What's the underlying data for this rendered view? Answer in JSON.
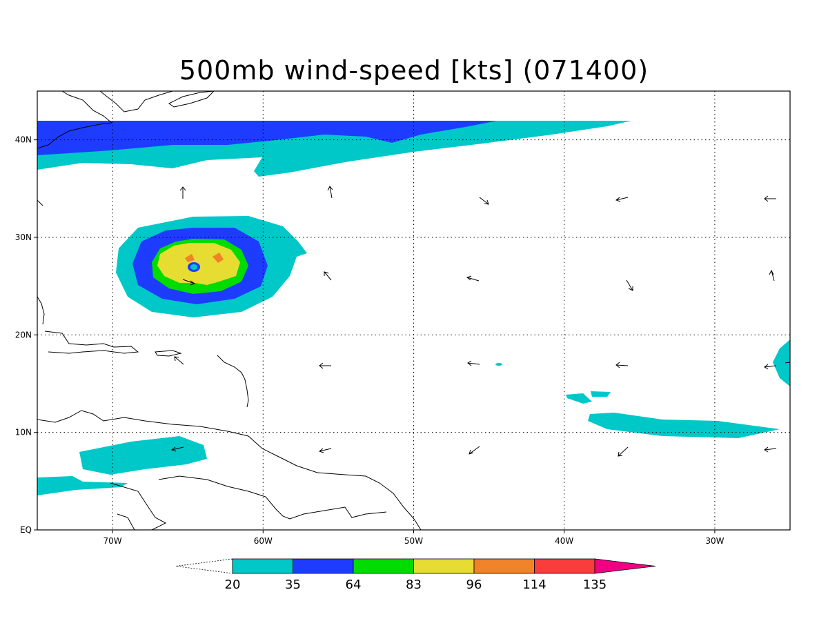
{
  "title": "500mb wind-speed [kts] (071400)",
  "map": {
    "lon_range": [
      -75,
      -25
    ],
    "lat_range": [
      0,
      45
    ],
    "lon_ticks": [
      {
        "value": -70,
        "label": "70W"
      },
      {
        "value": -60,
        "label": "60W"
      },
      {
        "value": -50,
        "label": "50W"
      },
      {
        "value": -40,
        "label": "40W"
      },
      {
        "value": -30,
        "label": "30W"
      }
    ],
    "lat_ticks": [
      {
        "value": 0,
        "label": "EQ"
      },
      {
        "value": 10,
        "label": "10N"
      },
      {
        "value": 20,
        "label": "20N"
      },
      {
        "value": 30,
        "label": "30N"
      },
      {
        "value": 40,
        "label": "40N"
      }
    ],
    "grid": true
  },
  "colorbar": {
    "levels": [
      "20",
      "35",
      "64",
      "83",
      "96",
      "114",
      "135"
    ],
    "colors": [
      "#00c8c8",
      "#1e3cff",
      "#00dc00",
      "#e6dc32",
      "#f08228",
      "#fa3c3c",
      "#f00082"
    ]
  },
  "storm": {
    "lon": -64.9,
    "lat": 27.0
  }
}
